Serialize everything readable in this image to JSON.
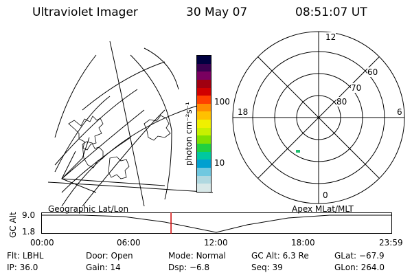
{
  "header": {
    "instrument": "Ultraviolet Imager",
    "date": "30 May 07",
    "time": "08:51:07 UT"
  },
  "colorbar": {
    "unit_label": "photon cm⁻²s⁻¹",
    "ticks": [
      "100",
      "10"
    ],
    "colors": [
      "#000040",
      "#3a0050",
      "#7a0060",
      "#a00010",
      "#d00000",
      "#ff4000",
      "#ff8c00",
      "#ffc000",
      "#f0f000",
      "#c8f000",
      "#80e000",
      "#20d040",
      "#00c8a0",
      "#00a0d0",
      "#70c8e0",
      "#b0d8e0",
      "#d8e8e8"
    ]
  },
  "geo_map": {
    "caption": "Geographic Lat/Lon"
  },
  "polar_plot": {
    "caption": "Apex MLat/MLT",
    "mlt_labels": {
      "top": "12",
      "left": "18",
      "right": "6",
      "bottom": "0"
    },
    "mlat_labels": [
      "60",
      "70",
      "80"
    ],
    "marker_color": "#20c070"
  },
  "altitude_plot": {
    "ylabel": "GC Alt",
    "y_ticks": [
      "9.0",
      "1.8"
    ],
    "x_ticks": [
      "00:00",
      "06:00",
      "12:00",
      "18:00",
      "23:59"
    ],
    "current_time_color": "#d00000",
    "current_time_fraction": 0.37
  },
  "status": {
    "flt_label": "Flt:",
    "flt_value": "LBHL",
    "door_label": "Door:",
    "door_value": "Open",
    "mode_label": "Mode:",
    "mode_value": "Normal",
    "gcalt_label": "GC Alt:",
    "gcalt_value": "6.3 Re",
    "glat_label": "GLat:",
    "glat_value": "−67.9",
    "ip_label": "IP:",
    "ip_value": "36.0",
    "gain_label": "Gain:",
    "gain_value": "14",
    "dsp_label": "Dsp:",
    "dsp_value": "−6.8",
    "seq_label": "Seq:",
    "seq_value": "39",
    "glon_label": "GLon:",
    "glon_value": "264.0"
  }
}
